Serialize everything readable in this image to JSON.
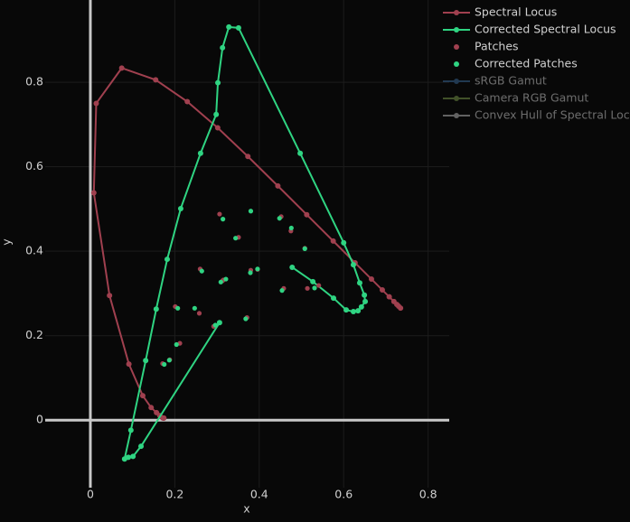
{
  "chart_data": {
    "type": "scatter",
    "xlabel": "x",
    "ylabel": "y",
    "xlim": [
      -0.107,
      0.85
    ],
    "ylim": [
      -0.16,
      0.995
    ],
    "xticks": [
      0,
      0.2,
      0.4,
      0.6,
      0.8
    ],
    "yticks": [
      0,
      0.2,
      0.4,
      0.6,
      0.8
    ],
    "grid": true,
    "zeroline": true,
    "legend": "right",
    "series": [
      {
        "name": "Spectral Locus",
        "color": "#a0404f",
        "mode": "lines+markers",
        "x": [
          0.1741,
          0.1733,
          0.1714,
          0.1644,
          0.1566,
          0.144,
          0.1241,
          0.0913,
          0.0454,
          0.0082,
          0.0139,
          0.0743,
          0.1547,
          0.2296,
          0.3016,
          0.3731,
          0.4441,
          0.5125,
          0.5752,
          0.627,
          0.6658,
          0.6915,
          0.7079,
          0.719,
          0.726,
          0.73,
          0.7347
        ],
        "y": [
          0.005,
          0.0048,
          0.0051,
          0.0109,
          0.0177,
          0.0297,
          0.0578,
          0.1327,
          0.295,
          0.5384,
          0.7502,
          0.8338,
          0.8059,
          0.7543,
          0.6923,
          0.6245,
          0.5547,
          0.4866,
          0.4242,
          0.3725,
          0.334,
          0.3083,
          0.292,
          0.2809,
          0.274,
          0.27,
          0.2653
        ]
      },
      {
        "name": "Corrected Spectral Locus",
        "color": "#2fd482",
        "mode": "lines+markers",
        "x": [
          0.306,
          0.12,
          0.101,
          0.09,
          0.081,
          0.096,
          0.131,
          0.156,
          0.182,
          0.214,
          0.261,
          0.298,
          0.302,
          0.313,
          0.328,
          0.351,
          0.497,
          0.6,
          0.623,
          0.638,
          0.649,
          0.651,
          0.642,
          0.634,
          0.623,
          0.606,
          0.576,
          0.527,
          0.478
        ],
        "y": [
          0.231,
          -0.062,
          -0.086,
          -0.088,
          -0.092,
          -0.024,
          0.141,
          0.263,
          0.381,
          0.501,
          0.632,
          0.724,
          0.799,
          0.882,
          0.931,
          0.929,
          0.632,
          0.42,
          0.368,
          0.325,
          0.296,
          0.281,
          0.268,
          0.259,
          0.257,
          0.261,
          0.289,
          0.328,
          0.362
        ]
      },
      {
        "name": "Patches",
        "color": "#a0404f",
        "mode": "markers",
        "x": [
          0.306,
          0.351,
          0.26,
          0.38,
          0.458,
          0.475,
          0.541,
          0.371,
          0.315,
          0.201,
          0.212,
          0.188,
          0.171,
          0.292,
          0.452,
          0.508,
          0.258,
          0.313,
          0.514,
          0.396
        ],
        "y": [
          0.488,
          0.433,
          0.358,
          0.355,
          0.312,
          0.448,
          0.319,
          0.243,
          0.332,
          0.269,
          0.182,
          0.143,
          0.134,
          0.222,
          0.482,
          0.407,
          0.253,
          0.33,
          0.312,
          0.357
        ]
      },
      {
        "name": "Corrected Patches",
        "color": "#2fd482",
        "mode": "markers",
        "x": [
          0.314,
          0.344,
          0.264,
          0.379,
          0.454,
          0.476,
          0.531,
          0.368,
          0.321,
          0.207,
          0.204,
          0.187,
          0.175,
          0.296,
          0.448,
          0.508,
          0.247,
          0.309,
          0.38,
          0.396
        ],
        "y": [
          0.476,
          0.431,
          0.353,
          0.349,
          0.307,
          0.455,
          0.313,
          0.24,
          0.334,
          0.265,
          0.179,
          0.142,
          0.132,
          0.225,
          0.478,
          0.406,
          0.265,
          0.327,
          0.495,
          0.358
        ]
      },
      {
        "name": "sRGB Gamut",
        "color": "#3a6a9a",
        "mode": "lines+markers",
        "visible": "legendonly"
      },
      {
        "name": "Camera RGB Gamut",
        "color": "#7a9a4a",
        "mode": "lines+markers",
        "visible": "legendonly"
      },
      {
        "name": "Convex Hull of Spectral Locus",
        "color": "#bbbbbb",
        "mode": "lines+markers",
        "visible": "legendonly"
      }
    ]
  }
}
